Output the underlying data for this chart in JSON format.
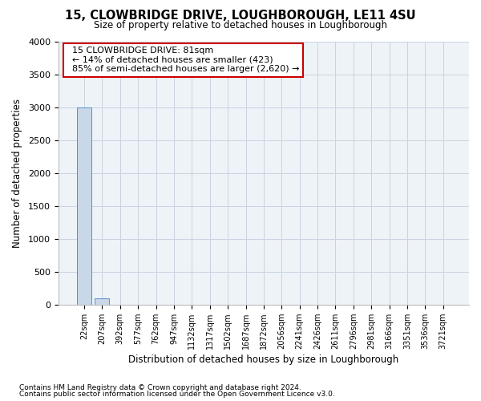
{
  "title": "15, CLOWBRIDGE DRIVE, LOUGHBOROUGH, LE11 4SU",
  "subtitle": "Size of property relative to detached houses in Loughborough",
  "xlabel": "Distribution of detached houses by size in Loughborough",
  "ylabel": "Number of detached properties",
  "footnote1": "Contains HM Land Registry data © Crown copyright and database right 2024.",
  "footnote2": "Contains public sector information licensed under the Open Government Licence v3.0.",
  "bar_labels": [
    "22sqm",
    "207sqm",
    "392sqm",
    "577sqm",
    "762sqm",
    "947sqm",
    "1132sqm",
    "1317sqm",
    "1502sqm",
    "1687sqm",
    "1872sqm",
    "2056sqm",
    "2241sqm",
    "2426sqm",
    "2611sqm",
    "2796sqm",
    "2981sqm",
    "3166sqm",
    "3351sqm",
    "3536sqm",
    "3721sqm"
  ],
  "bar_values": [
    3000,
    100,
    0,
    0,
    0,
    0,
    0,
    0,
    0,
    0,
    0,
    0,
    0,
    0,
    0,
    0,
    0,
    0,
    0,
    0,
    0
  ],
  "bar_color": "#c8d8e8",
  "bar_edge_color": "#5b8fc4",
  "ylim": [
    0,
    4000
  ],
  "yticks": [
    0,
    500,
    1000,
    1500,
    2000,
    2500,
    3000,
    3500,
    4000
  ],
  "annotation_title": "15 CLOWBRIDGE DRIVE: 81sqm",
  "annotation_line1": "← 14% of detached houses are smaller (423)",
  "annotation_line2": "85% of semi-detached houses are larger (2,620) →",
  "annotation_box_facecolor": "#ffffff",
  "annotation_box_edgecolor": "#cc0000",
  "grid_color": "#c8d4e0",
  "bg_color": "#ffffff",
  "plot_bg_color": "#eef3f8"
}
